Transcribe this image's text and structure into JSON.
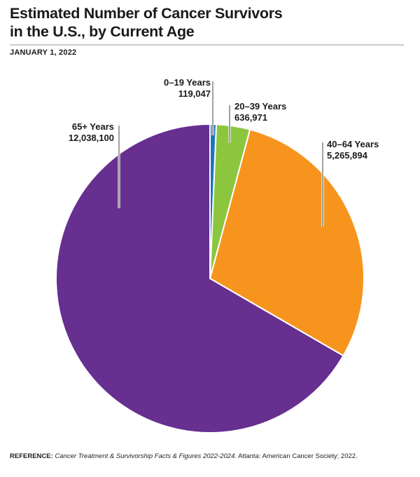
{
  "header": {
    "title_line1": "Estimated Number of Cancer Survivors",
    "title_line2": "in the U.S., by Current Age",
    "date": "JANUARY 1, 2022"
  },
  "chart_data": {
    "type": "pie",
    "title": "Estimated Number of Cancer Survivors in the U.S., by Current Age",
    "subtitle": "JANUARY 1, 2022",
    "start_angle_deg": 0,
    "direction": "clockwise",
    "legend_position": "callout-labels",
    "slices": [
      {
        "id": "0-19",
        "label": "0–19 Years",
        "value": 119047,
        "value_text": "119,047",
        "color": "#1e76bd"
      },
      {
        "id": "20-39",
        "label": "20–39 Years",
        "value": 636971,
        "value_text": "636,971",
        "color": "#8cc63f"
      },
      {
        "id": "40-64",
        "label": "40–64 Years",
        "value": 5265894,
        "value_text": "5,265,894",
        "color": "#f7941e"
      },
      {
        "id": "65-plus",
        "label": "65+ Years",
        "value": 12038100,
        "value_text": "12,038,100",
        "color": "#662f90"
      }
    ]
  },
  "footer": {
    "reference_label": "REFERENCE:",
    "reference_source_italic": "Cancer Treatment & Survivorship Facts & Figures 2022-2024.",
    "reference_rest": "Atlanta: American Cancer Society; 2022."
  }
}
